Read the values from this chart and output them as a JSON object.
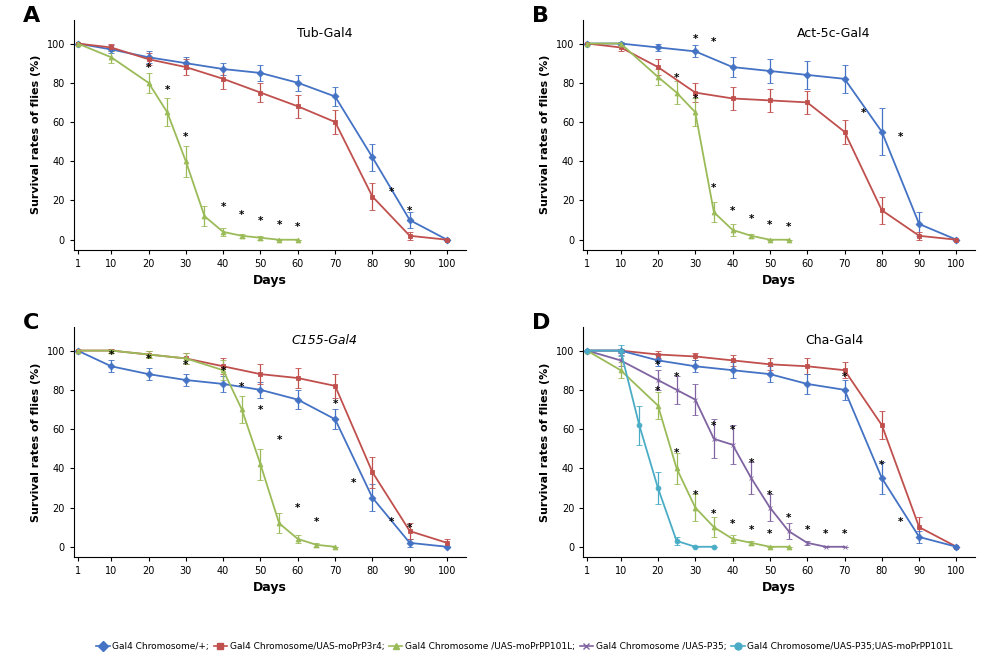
{
  "panels": {
    "A": {
      "title": "Tub-Gal4",
      "label": "A",
      "series": {
        "blue": {
          "x": [
            1,
            10,
            20,
            30,
            40,
            50,
            60,
            70,
            80,
            90,
            100
          ],
          "y": [
            100,
            97,
            93,
            90,
            87,
            85,
            80,
            73,
            42,
            10,
            0
          ],
          "yerr": [
            0,
            2,
            3,
            3,
            3,
            4,
            4,
            5,
            7,
            4,
            0
          ],
          "color": "#4472C4",
          "marker": "D"
        },
        "red": {
          "x": [
            1,
            10,
            20,
            30,
            40,
            50,
            60,
            70,
            80,
            90,
            100
          ],
          "y": [
            100,
            98,
            92,
            88,
            82,
            75,
            68,
            60,
            22,
            2,
            0
          ],
          "yerr": [
            0,
            2,
            3,
            4,
            5,
            5,
            6,
            6,
            7,
            2,
            0
          ],
          "color": "#C0504D",
          "marker": "s"
        },
        "green": {
          "x": [
            1,
            10,
            20,
            25,
            30,
            35,
            40,
            45,
            50,
            55,
            60
          ],
          "y": [
            100,
            93,
            80,
            65,
            40,
            12,
            4,
            2,
            1,
            0,
            0
          ],
          "yerr": [
            0,
            3,
            5,
            7,
            8,
            5,
            2,
            1,
            1,
            0,
            0
          ],
          "color": "#9BBB59",
          "marker": "^"
        }
      },
      "stars": [
        [
          20,
          83
        ],
        [
          25,
          72
        ],
        [
          30,
          48
        ],
        [
          40,
          12
        ],
        [
          45,
          8
        ],
        [
          50,
          5
        ],
        [
          55,
          3
        ],
        [
          60,
          2
        ],
        [
          85,
          20
        ],
        [
          90,
          10
        ]
      ]
    },
    "B": {
      "title": "Act-5c-Gal4",
      "label": "B",
      "series": {
        "blue": {
          "x": [
            1,
            10,
            20,
            30,
            40,
            50,
            60,
            70,
            80,
            90,
            100
          ],
          "y": [
            100,
            100,
            98,
            96,
            88,
            86,
            84,
            82,
            55,
            8,
            0
          ],
          "yerr": [
            0,
            1,
            2,
            3,
            5,
            6,
            7,
            7,
            12,
            6,
            0
          ],
          "color": "#4472C4",
          "marker": "D"
        },
        "red": {
          "x": [
            1,
            10,
            20,
            30,
            40,
            50,
            60,
            70,
            80,
            90,
            100
          ],
          "y": [
            100,
            98,
            88,
            75,
            72,
            71,
            70,
            55,
            15,
            2,
            0
          ],
          "yerr": [
            0,
            2,
            4,
            5,
            6,
            6,
            6,
            6,
            7,
            2,
            0
          ],
          "color": "#C0504D",
          "marker": "s"
        },
        "green": {
          "x": [
            1,
            10,
            20,
            25,
            30,
            35,
            40,
            45,
            50,
            55
          ],
          "y": [
            100,
            100,
            83,
            75,
            65,
            14,
            5,
            2,
            0,
            0
          ],
          "yerr": [
            0,
            1,
            4,
            6,
            7,
            5,
            3,
            1,
            0,
            0
          ],
          "color": "#9BBB59",
          "marker": "^"
        }
      },
      "stars": [
        [
          30,
          98
        ],
        [
          35,
          96
        ],
        [
          25,
          78
        ],
        [
          30,
          67
        ],
        [
          35,
          22
        ],
        [
          40,
          10
        ],
        [
          45,
          6
        ],
        [
          50,
          3
        ],
        [
          55,
          2
        ],
        [
          75,
          60
        ],
        [
          85,
          48
        ]
      ]
    },
    "C": {
      "title": "C155-Gal4",
      "label": "C",
      "series": {
        "blue": {
          "x": [
            1,
            10,
            20,
            30,
            40,
            50,
            60,
            70,
            80,
            90,
            100
          ],
          "y": [
            100,
            92,
            88,
            85,
            83,
            80,
            75,
            65,
            25,
            2,
            0
          ],
          "yerr": [
            0,
            3,
            3,
            3,
            4,
            4,
            5,
            5,
            7,
            2,
            0
          ],
          "color": "#4472C4",
          "marker": "D"
        },
        "red": {
          "x": [
            1,
            10,
            20,
            30,
            40,
            50,
            60,
            70,
            80,
            90,
            100
          ],
          "y": [
            100,
            100,
            98,
            96,
            92,
            88,
            86,
            82,
            38,
            8,
            2
          ],
          "yerr": [
            0,
            1,
            2,
            3,
            4,
            5,
            5,
            6,
            8,
            4,
            2
          ],
          "color": "#C0504D",
          "marker": "s"
        },
        "green": {
          "x": [
            1,
            10,
            20,
            30,
            40,
            45,
            50,
            55,
            60,
            65,
            70
          ],
          "y": [
            100,
            100,
            98,
            96,
            90,
            70,
            42,
            12,
            4,
            1,
            0
          ],
          "yerr": [
            0,
            1,
            2,
            3,
            5,
            7,
            8,
            5,
            2,
            1,
            0
          ],
          "color": "#9BBB59",
          "marker": "^"
        }
      },
      "stars": [
        [
          10,
          93
        ],
        [
          20,
          91
        ],
        [
          30,
          88
        ],
        [
          40,
          85
        ],
        [
          45,
          77
        ],
        [
          50,
          65
        ],
        [
          55,
          50
        ],
        [
          60,
          15
        ],
        [
          65,
          8
        ],
        [
          70,
          68
        ],
        [
          75,
          28
        ],
        [
          85,
          8
        ],
        [
          90,
          5
        ]
      ]
    },
    "D": {
      "title": "Cha-Gal4",
      "label": "D",
      "series": {
        "red": {
          "x": [
            1,
            10,
            20,
            30,
            40,
            50,
            60,
            70,
            80,
            90,
            100
          ],
          "y": [
            100,
            100,
            98,
            97,
            95,
            93,
            92,
            90,
            62,
            10,
            0
          ],
          "yerr": [
            0,
            1,
            2,
            2,
            3,
            3,
            4,
            4,
            7,
            5,
            0
          ],
          "color": "#C0504D",
          "marker": "s"
        },
        "blue": {
          "x": [
            1,
            10,
            20,
            30,
            40,
            50,
            60,
            70,
            80,
            90,
            100
          ],
          "y": [
            100,
            100,
            95,
            92,
            90,
            88,
            83,
            80,
            35,
            5,
            0
          ],
          "yerr": [
            0,
            1,
            3,
            3,
            4,
            4,
            5,
            5,
            8,
            3,
            0
          ],
          "color": "#4472C4",
          "marker": "D"
        },
        "purple": {
          "x": [
            1,
            10,
            20,
            25,
            30,
            35,
            40,
            45,
            50,
            55,
            60,
            65,
            70
          ],
          "y": [
            100,
            95,
            85,
            80,
            75,
            55,
            52,
            35,
            20,
            8,
            2,
            0,
            0
          ],
          "yerr": [
            0,
            3,
            5,
            7,
            8,
            10,
            10,
            8,
            7,
            4,
            1,
            0,
            0
          ],
          "color": "#8064A2",
          "marker": "x"
        },
        "green": {
          "x": [
            1,
            10,
            20,
            25,
            30,
            35,
            40,
            45,
            50,
            55
          ],
          "y": [
            100,
            90,
            72,
            40,
            20,
            10,
            4,
            2,
            0,
            0
          ],
          "yerr": [
            0,
            4,
            7,
            8,
            7,
            5,
            2,
            1,
            0,
            0
          ],
          "color": "#9BBB59",
          "marker": "^"
        },
        "cyan": {
          "x": [
            1,
            10,
            15,
            20,
            25,
            30,
            35
          ],
          "y": [
            100,
            100,
            62,
            30,
            3,
            0,
            0
          ],
          "yerr": [
            0,
            3,
            10,
            8,
            2,
            0,
            0
          ],
          "color": "#4BACC6",
          "marker": "o"
        }
      },
      "stars": [
        [
          20,
          75
        ],
        [
          20,
          88
        ],
        [
          25,
          82
        ],
        [
          25,
          43
        ],
        [
          30,
          22
        ],
        [
          35,
          12
        ],
        [
          40,
          7
        ],
        [
          45,
          4
        ],
        [
          50,
          2
        ],
        [
          35,
          57
        ],
        [
          40,
          55
        ],
        [
          45,
          38
        ],
        [
          50,
          22
        ],
        [
          55,
          10
        ],
        [
          60,
          4
        ],
        [
          65,
          2
        ],
        [
          70,
          2
        ],
        [
          70,
          82
        ],
        [
          80,
          37
        ],
        [
          85,
          8
        ]
      ]
    }
  },
  "legend_items": [
    {
      "label": "Gal4 Chromosome/+;",
      "color": "#4472C4",
      "marker": "D"
    },
    {
      "label": "Gal4 Chromosome/UAS-moPrP3r4;",
      "color": "#C0504D",
      "marker": "s"
    },
    {
      "label": "Gal4 Chromosome /UAS-moPrPP101L;",
      "color": "#9BBB59",
      "marker": "^"
    },
    {
      "label": "Gal4 Chromosome /UAS-P35;",
      "color": "#8064A2",
      "marker": "x"
    },
    {
      "label": "Gal4 Chromosome/UAS-P35;UAS-moPrPP101L",
      "color": "#4BACC6",
      "marker": "o"
    }
  ],
  "ylabel": "Survival rates of flies (%)",
  "xlabel": "Days",
  "xticks": [
    1,
    10,
    20,
    30,
    40,
    50,
    60,
    70,
    80,
    90,
    100
  ],
  "yticks": [
    0,
    20,
    40,
    60,
    80,
    100
  ]
}
